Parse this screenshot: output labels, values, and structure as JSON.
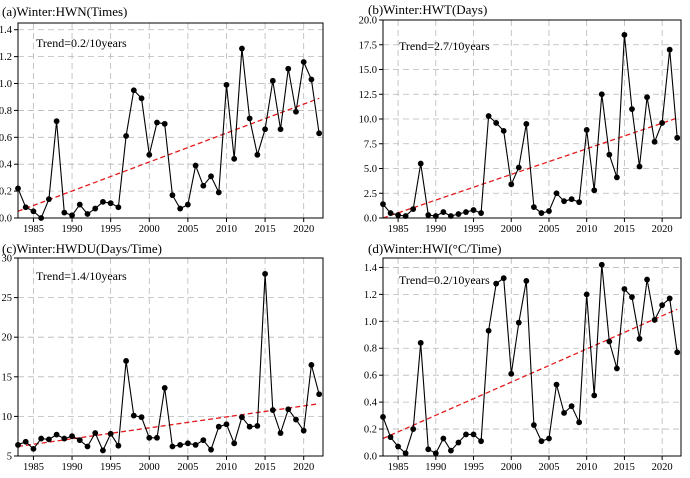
{
  "colors": {
    "series": "#000000",
    "trend": "#e41a1c",
    "grid": "#b8b8b8"
  },
  "chart_data": [
    {
      "type": "line",
      "title": "(a)Winter:HWN(Times)",
      "trend_label": "Trend=0.2/10years",
      "xlim": [
        1983,
        2022.5
      ],
      "ylim": [
        0,
        1.45
      ],
      "xticks": [
        1985,
        1990,
        1995,
        2000,
        2005,
        2010,
        2015,
        2020
      ],
      "yticks": [
        0.0,
        0.2,
        0.4,
        0.6,
        0.8,
        1.0,
        1.2,
        1.4
      ],
      "ytick_labels": [
        "0.0",
        "0.2",
        "0.4",
        "0.6",
        "0.8",
        "1.0",
        "1.2",
        "1.4"
      ],
      "x": [
        1983,
        1984,
        1985,
        1986,
        1987,
        1988,
        1989,
        1990,
        1991,
        1992,
        1993,
        1994,
        1995,
        1996,
        1997,
        1998,
        1999,
        2000,
        2001,
        2002,
        2003,
        2004,
        2005,
        2006,
        2007,
        2008,
        2009,
        2010,
        2011,
        2012,
        2013,
        2014,
        2015,
        2016,
        2017,
        2018,
        2019,
        2020,
        2021,
        2022
      ],
      "values": [
        0.22,
        0.08,
        0.05,
        0.0,
        0.14,
        0.72,
        0.04,
        0.02,
        0.1,
        0.03,
        0.07,
        0.12,
        0.11,
        0.08,
        0.61,
        0.95,
        0.89,
        0.47,
        0.71,
        0.7,
        0.17,
        0.07,
        0.1,
        0.39,
        0.24,
        0.31,
        0.19,
        0.99,
        0.44,
        1.26,
        0.74,
        0.47,
        0.66,
        1.02,
        0.66,
        1.11,
        0.79,
        1.16,
        1.03,
        0.63
      ],
      "trend": {
        "x": [
          1983,
          2022
        ],
        "y": [
          0.05,
          0.89
        ]
      }
    },
    {
      "type": "line",
      "title": "(b)Winter:HWT(Days)",
      "trend_label": "Trend=2.7/10years",
      "xlim": [
        1983,
        2022.5
      ],
      "ylim": [
        0,
        20
      ],
      "xticks": [
        1985,
        1990,
        1995,
        2000,
        2005,
        2010,
        2015,
        2020
      ],
      "yticks": [
        0.0,
        2.5,
        5.0,
        7.5,
        10.0,
        12.5,
        15.0,
        17.5,
        20.0
      ],
      "ytick_labels": [
        "0.0",
        "2.5",
        "5.0",
        "7.5",
        "10.0",
        "12.5",
        "15.0",
        "17.5",
        "20.0"
      ],
      "x": [
        1983,
        1984,
        1985,
        1986,
        1987,
        1988,
        1989,
        1990,
        1991,
        1992,
        1993,
        1994,
        1995,
        1996,
        1997,
        1998,
        1999,
        2000,
        2001,
        2002,
        2003,
        2004,
        2005,
        2006,
        2007,
        2008,
        2009,
        2010,
        2011,
        2012,
        2013,
        2014,
        2015,
        2016,
        2017,
        2018,
        2019,
        2020,
        2021,
        2022
      ],
      "values": [
        1.4,
        0.5,
        0.3,
        0.2,
        0.9,
        5.5,
        0.3,
        0.2,
        0.6,
        0.2,
        0.4,
        0.6,
        0.8,
        0.5,
        10.3,
        9.6,
        8.8,
        3.4,
        5.1,
        9.5,
        1.1,
        0.5,
        0.7,
        2.5,
        1.7,
        1.9,
        1.6,
        8.9,
        2.8,
        12.5,
        6.4,
        4.1,
        18.5,
        11.0,
        5.2,
        12.2,
        7.7,
        9.6,
        17.0,
        8.1
      ],
      "trend": {
        "x": [
          1983,
          2022
        ],
        "y": [
          0.0,
          10.1
        ]
      }
    },
    {
      "type": "line",
      "title": "(c)Winter:HWDU(Days/Time)",
      "trend_label": "Trend=1.4/10years",
      "xlim": [
        1983,
        2022.5
      ],
      "ylim": [
        5,
        30
      ],
      "xticks": [
        1985,
        1990,
        1995,
        2000,
        2005,
        2010,
        2015,
        2020
      ],
      "yticks": [
        5,
        10,
        15,
        20,
        25,
        30
      ],
      "ytick_labels": [
        "5",
        "10",
        "15",
        "20",
        "25",
        "30"
      ],
      "x": [
        1983,
        1984,
        1985,
        1986,
        1987,
        1988,
        1989,
        1990,
        1991,
        1992,
        1993,
        1994,
        1995,
        1996,
        1997,
        1998,
        1999,
        2000,
        2001,
        2002,
        2003,
        2004,
        2005,
        2006,
        2007,
        2008,
        2009,
        2010,
        2011,
        2012,
        2013,
        2014,
        2015,
        2016,
        2017,
        2018,
        2019,
        2020,
        2021,
        2022
      ],
      "values": [
        6.4,
        6.8,
        5.9,
        7.2,
        7.1,
        7.7,
        7.2,
        7.5,
        7.0,
        6.2,
        7.9,
        5.7,
        7.8,
        6.3,
        17.0,
        10.1,
        9.9,
        7.3,
        7.3,
        13.6,
        6.2,
        6.4,
        6.6,
        6.4,
        7.0,
        5.8,
        8.7,
        9.0,
        6.6,
        9.9,
        8.7,
        8.8,
        28.0,
        10.8,
        7.9,
        10.9,
        9.6,
        8.2,
        16.5,
        12.8
      ],
      "trend": {
        "x": [
          1983,
          2022
        ],
        "y": [
          6.2,
          11.6
        ]
      }
    },
    {
      "type": "line",
      "title": "(d)Winter:HWI(°C/Time)",
      "trend_label": "Trend=0.2/10years",
      "xlim": [
        1983,
        2022.5
      ],
      "ylim": [
        0,
        1.47
      ],
      "xticks": [
        1985,
        1990,
        1995,
        2000,
        2005,
        2010,
        2015,
        2020
      ],
      "yticks": [
        0.0,
        0.2,
        0.4,
        0.6,
        0.8,
        1.0,
        1.2,
        1.4
      ],
      "ytick_labels": [
        "0.0",
        "0.2",
        "0.4",
        "0.6",
        "0.8",
        "1.0",
        "1.2",
        "1.4"
      ],
      "x": [
        1983,
        1984,
        1985,
        1986,
        1987,
        1988,
        1989,
        1990,
        1991,
        1992,
        1993,
        1994,
        1995,
        1996,
        1997,
        1998,
        1999,
        2000,
        2001,
        2002,
        2003,
        2004,
        2005,
        2006,
        2007,
        2008,
        2009,
        2010,
        2011,
        2012,
        2013,
        2014,
        2015,
        2016,
        2017,
        2018,
        2019,
        2020,
        2021,
        2022
      ],
      "values": [
        0.29,
        0.14,
        0.07,
        0.02,
        0.2,
        0.84,
        0.05,
        0.02,
        0.13,
        0.04,
        0.1,
        0.16,
        0.16,
        0.11,
        0.93,
        1.28,
        1.32,
        0.61,
        0.99,
        1.3,
        0.23,
        0.11,
        0.13,
        0.53,
        0.32,
        0.37,
        0.25,
        1.2,
        0.45,
        1.42,
        0.85,
        0.65,
        1.24,
        1.18,
        0.87,
        1.31,
        1.01,
        1.12,
        1.17,
        0.77
      ],
      "trend": {
        "x": [
          1983,
          2022
        ],
        "y": [
          0.13,
          1.09
        ]
      }
    }
  ]
}
